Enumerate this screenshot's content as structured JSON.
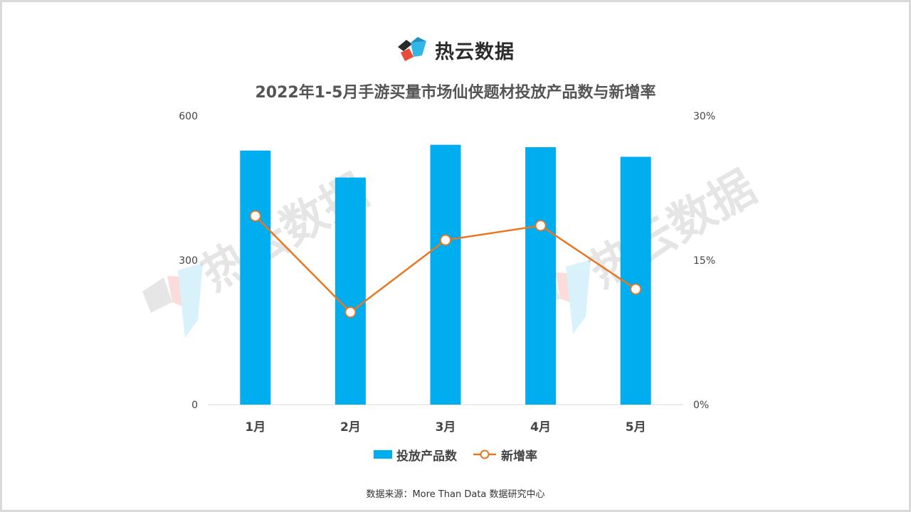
{
  "brand": {
    "name": "热云数据"
  },
  "watermark": {
    "text": "热云数据"
  },
  "source": "数据来源：More Than Data 数据研究中心",
  "colors": {
    "bar": "#00aeef",
    "line": "#e87722",
    "axis": "#d9d9d9"
  },
  "chart_data": {
    "type": "bar",
    "title": "2022年1-5月手游买量市场仙侠题材投放产品数与新增率",
    "categories": [
      "1月",
      "2月",
      "3月",
      "4月",
      "5月"
    ],
    "y_left": {
      "ticks": [
        "0",
        "300",
        "600"
      ],
      "range": [
        0,
        600
      ]
    },
    "y_right": {
      "ticks": [
        "0%",
        "15%",
        "30%"
      ],
      "range": [
        0,
        30
      ]
    },
    "series": [
      {
        "name": "投放产品数",
        "type": "bar",
        "axis": "left",
        "values": [
          528,
          472,
          540,
          535,
          515
        ]
      },
      {
        "name": "新增率",
        "type": "line",
        "axis": "right",
        "values": [
          19.6,
          9.6,
          17.1,
          18.6,
          12.0
        ]
      }
    ],
    "legend_position": "bottom",
    "grid": false
  }
}
